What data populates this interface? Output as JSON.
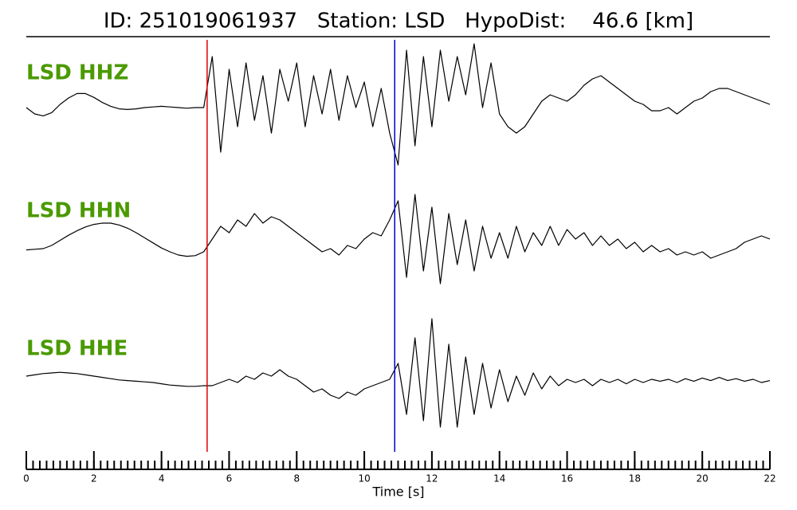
{
  "chart_data": {
    "type": "seismogram",
    "title": "ID: 251019061937   Station: LSD   HypoDist:    46.6 [km]",
    "xlabel": "Time [s]",
    "xlim": [
      0,
      22
    ],
    "xticks": [
      0,
      2,
      4,
      6,
      8,
      10,
      12,
      14,
      16,
      18,
      20,
      22
    ],
    "xminor_step": 0.2,
    "ylim": [
      -1,
      1
    ],
    "label_color": "#4a9a00",
    "markers": [
      {
        "x": 5.35,
        "color": "#e00000"
      },
      {
        "x": 10.9,
        "color": "#0000cc"
      }
    ],
    "x": [
      0,
      0.25,
      0.5,
      0.75,
      1,
      1.25,
      1.5,
      1.75,
      2,
      2.25,
      2.5,
      2.75,
      3,
      3.25,
      3.5,
      3.75,
      4,
      4.25,
      4.5,
      4.75,
      5,
      5.25,
      5.5,
      5.75,
      6,
      6.25,
      6.5,
      6.75,
      7,
      7.25,
      7.5,
      7.75,
      8,
      8.25,
      8.5,
      8.75,
      9,
      9.25,
      9.5,
      9.75,
      10,
      10.25,
      10.5,
      10.75,
      11,
      11.25,
      11.5,
      11.75,
      12,
      12.25,
      12.5,
      12.75,
      13,
      13.25,
      13.5,
      13.75,
      14,
      14.25,
      14.5,
      14.75,
      15,
      15.25,
      15.5,
      15.75,
      16,
      16.25,
      16.5,
      16.75,
      17,
      17.25,
      17.5,
      17.75,
      18,
      18.25,
      18.5,
      18.75,
      19,
      19.25,
      19.5,
      19.75,
      20,
      20.25,
      20.5,
      20.75,
      21,
      21.25,
      21.5,
      21.75,
      22
    ],
    "series": [
      {
        "name": "LSD HHZ",
        "color": "#000000",
        "values": [
          0,
          -0.1,
          -0.13,
          -0.08,
          0.05,
          0.15,
          0.22,
          0.22,
          0.16,
          0.08,
          0.02,
          -0.02,
          -0.03,
          -0.02,
          0,
          0.01,
          0.02,
          0.01,
          0,
          -0.01,
          0,
          0,
          0.8,
          -0.7,
          0.6,
          -0.3,
          0.7,
          -0.2,
          0.5,
          -0.4,
          0.6,
          0.1,
          0.7,
          -0.3,
          0.5,
          -0.1,
          0.6,
          -0.2,
          0.5,
          0.0,
          0.4,
          -0.3,
          0.3,
          -0.4,
          -0.9,
          0.9,
          -0.6,
          0.8,
          -0.3,
          0.9,
          0.1,
          0.8,
          0.2,
          1.0,
          0.0,
          0.7,
          -0.1,
          -0.3,
          -0.4,
          -0.3,
          -0.1,
          0.1,
          0.2,
          0.15,
          0.1,
          0.2,
          0.35,
          0.45,
          0.5,
          0.4,
          0.3,
          0.2,
          0.1,
          0.05,
          -0.05,
          -0.05,
          0,
          -0.1,
          0,
          0.1,
          0.15,
          0.25,
          0.3,
          0.3,
          0.25,
          0.2,
          0.15,
          0.1,
          0.05
        ]
      },
      {
        "name": "LSD HHN",
        "color": "#000000",
        "values": [
          -0.17,
          -0.16,
          -0.15,
          -0.1,
          -0.02,
          0.06,
          0.13,
          0.19,
          0.23,
          0.25,
          0.25,
          0.22,
          0.17,
          0.1,
          0.02,
          -0.06,
          -0.14,
          -0.2,
          -0.25,
          -0.27,
          -0.26,
          -0.2,
          0.0,
          0.2,
          0.1,
          0.3,
          0.2,
          0.4,
          0.25,
          0.35,
          0.3,
          0.2,
          0.1,
          0.0,
          -0.1,
          -0.2,
          -0.15,
          -0.25,
          -0.1,
          -0.15,
          0.0,
          0.1,
          0.05,
          0.3,
          0.6,
          -0.6,
          0.7,
          -0.5,
          0.5,
          -0.7,
          0.4,
          -0.4,
          0.3,
          -0.5,
          0.2,
          -0.3,
          0.1,
          -0.3,
          0.2,
          -0.2,
          0.1,
          -0.1,
          0.2,
          -0.1,
          0.15,
          0.0,
          0.1,
          -0.1,
          0.05,
          -0.1,
          0.0,
          -0.15,
          -0.05,
          -0.2,
          -0.1,
          -0.2,
          -0.15,
          -0.25,
          -0.2,
          -0.25,
          -0.2,
          -0.3,
          -0.25,
          -0.2,
          -0.15,
          -0.05,
          0.0,
          0.05,
          0.0
        ]
      },
      {
        "name": "LSD HHE",
        "color": "#000000",
        "values": [
          0.1,
          0.12,
          0.14,
          0.15,
          0.16,
          0.15,
          0.14,
          0.12,
          0.1,
          0.08,
          0.06,
          0.04,
          0.03,
          0.02,
          0.01,
          0.0,
          -0.02,
          -0.04,
          -0.05,
          -0.06,
          -0.06,
          -0.05,
          -0.05,
          0.0,
          0.05,
          0.0,
          0.1,
          0.05,
          0.15,
          0.1,
          0.2,
          0.1,
          0.05,
          -0.05,
          -0.15,
          -0.1,
          -0.2,
          -0.25,
          -0.15,
          -0.2,
          -0.1,
          -0.05,
          0.0,
          0.05,
          0.3,
          -0.5,
          0.7,
          -0.6,
          1.0,
          -0.7,
          0.6,
          -0.7,
          0.4,
          -0.5,
          0.3,
          -0.4,
          0.2,
          -0.3,
          0.1,
          -0.2,
          0.15,
          -0.1,
          0.1,
          -0.05,
          0.05,
          0.0,
          0.05,
          -0.05,
          0.05,
          0.0,
          0.05,
          -0.02,
          0.05,
          0.0,
          0.05,
          0.02,
          0.05,
          0.0,
          0.06,
          0.02,
          0.07,
          0.03,
          0.08,
          0.03,
          0.06,
          0.02,
          0.05,
          0.0,
          0.03
        ]
      }
    ]
  }
}
